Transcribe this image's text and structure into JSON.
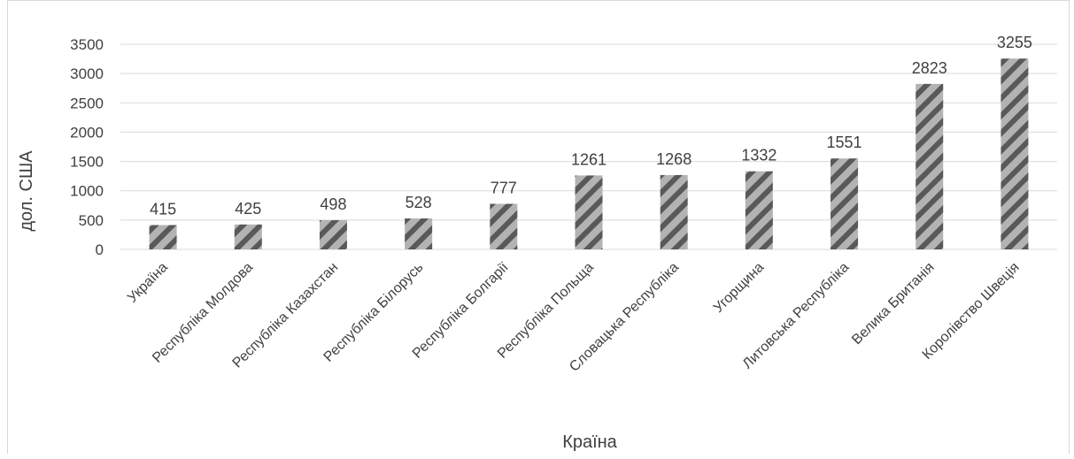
{
  "chart_data": {
    "type": "bar",
    "categories": [
      "Україна",
      "Республіка Молдова",
      "Республіка Казахстан",
      "Республіка Білорусь",
      "Республіка Болгарії",
      "Республіка Польща",
      "Словацька Республіка",
      "Угорщина",
      "Литовська Республіка",
      "Велика Британія",
      "Королівство Швеція"
    ],
    "values": [
      415,
      425,
      498,
      528,
      777,
      1261,
      1268,
      1332,
      1551,
      2823,
      3255
    ],
    "title": "",
    "xlabel": "Країна",
    "ylabel": "дол. США",
    "ylim": [
      0,
      3500
    ],
    "yticks": [
      0,
      500,
      1000,
      1500,
      2000,
      2500,
      3000,
      3500
    ],
    "grid": true,
    "legend": "none",
    "data_labels": true,
    "bar_fill": "diagonal-stripes",
    "colors": {
      "stripe_light": "#b3b3b3",
      "stripe_dark": "#595959",
      "grid": "#d9d9d9",
      "text": "#404040"
    }
  }
}
